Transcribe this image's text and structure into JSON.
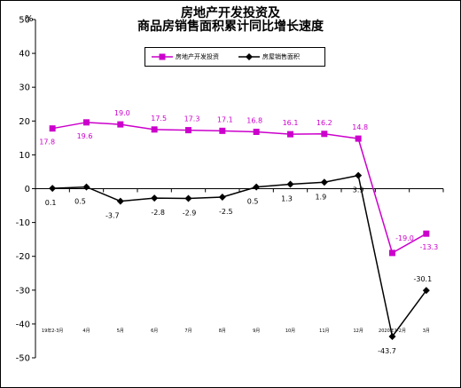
{
  "chart_data": {
    "type": "line",
    "title": "房地产开发投资及",
    "subtitle": "商品房销售面积累计同比增长速度",
    "ylabel": "%",
    "ylim": [
      -50,
      50
    ],
    "yticks": [
      50,
      40,
      30,
      20,
      10,
      0,
      -10,
      -20,
      -30,
      -40,
      -50
    ],
    "categories": [
      "19年2-3月",
      "4月",
      "5月",
      "6月",
      "7月",
      "8月",
      "9月",
      "10月",
      "11月",
      "12月",
      "2020年1-2月",
      "3月"
    ],
    "grid": false,
    "legend_position": "top-center",
    "series": [
      {
        "name": "房地产开发投资",
        "color": "#cc00cc",
        "marker": "square",
        "values": [
          17.8,
          19.6,
          19.0,
          17.5,
          17.3,
          17.1,
          16.8,
          16.1,
          16.2,
          14.8,
          -19.0,
          -13.3
        ]
      },
      {
        "name": "房屋销售面积",
        "color": "#000000",
        "marker": "diamond",
        "values": [
          0.1,
          0.5,
          -3.7,
          -2.8,
          -2.9,
          -2.5,
          0.5,
          1.3,
          1.9,
          3.9,
          -43.7,
          -30.1
        ]
      }
    ]
  }
}
